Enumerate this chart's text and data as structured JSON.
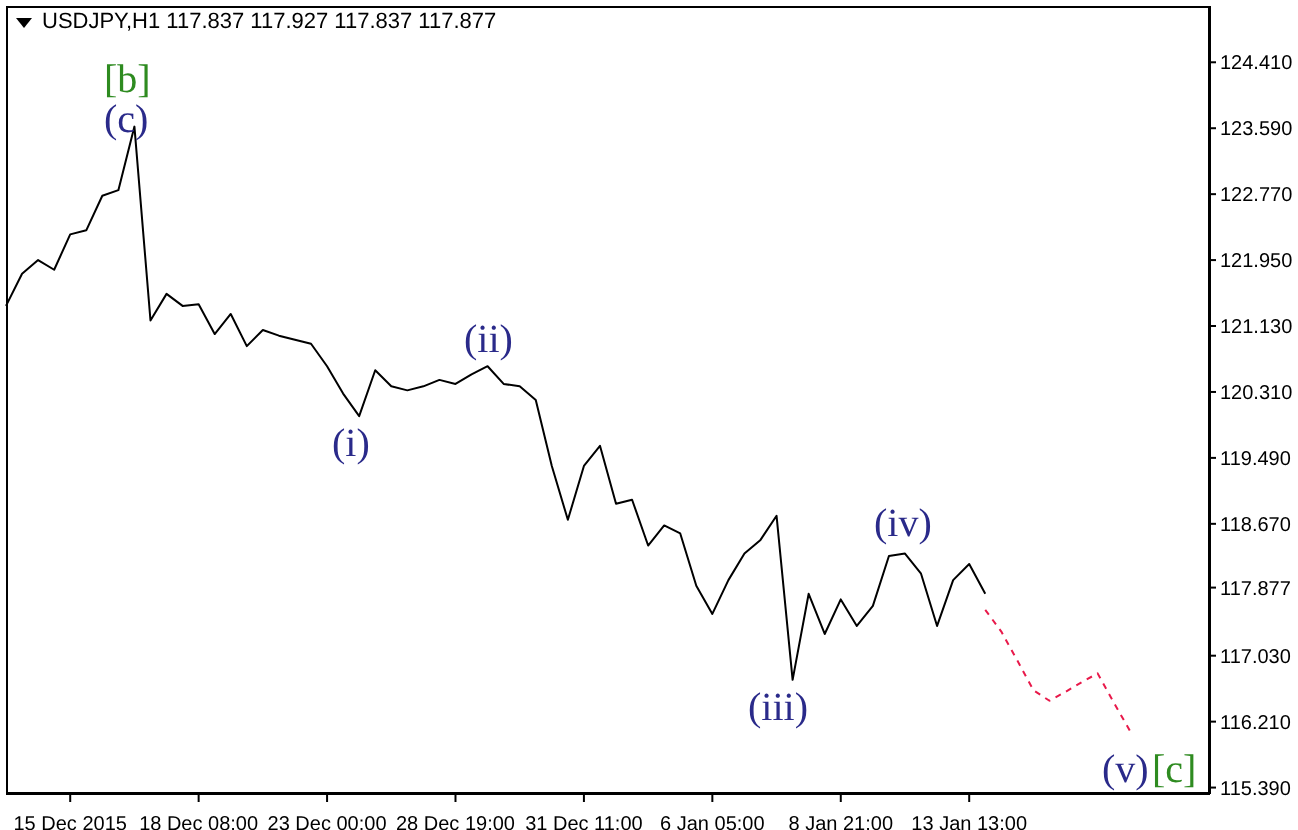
{
  "chart_data": {
    "type": "line",
    "title": "USDJPY,H1  117.837 117.927 117.837 117.877",
    "categories": [
      null,
      null,
      null,
      null,
      "15 Dec 2015",
      null,
      null,
      null,
      null,
      null,
      null,
      null,
      "18 Dec 08:00",
      null,
      null,
      null,
      null,
      null,
      null,
      null,
      "23 Dec 00:00",
      null,
      null,
      null,
      null,
      null,
      null,
      null,
      "28 Dec 19:00",
      null,
      null,
      null,
      null,
      null,
      null,
      null,
      "31 Dec 11:00",
      null,
      null,
      null,
      null,
      null,
      null,
      null,
      "6 Jan 05:00",
      null,
      null,
      null,
      null,
      null,
      null,
      null,
      "8 Jan 21:00",
      null,
      null,
      null,
      null,
      null,
      null,
      null,
      "13 Jan 13:00",
      null,
      null,
      null,
      null,
      null,
      null,
      null,
      null,
      null,
      null,
      null,
      null,
      null,
      null,
      null
    ],
    "ylim": [
      115.31,
      125.11
    ],
    "yticks": [
      {
        "value": 115.39,
        "label": "115.390"
      },
      {
        "value": 116.21,
        "label": "116.210"
      },
      {
        "value": 117.03,
        "label": "117.030"
      },
      117.877,
      {
        "value": 118.67,
        "label": "118.670"
      },
      {
        "value": 119.49,
        "label": "119.490"
      },
      {
        "value": 120.31,
        "label": "120.310"
      },
      {
        "value": 121.13,
        "label": "121.130"
      },
      {
        "value": 121.95,
        "label": "121.950"
      },
      {
        "value": 122.77,
        "label": "122.770"
      },
      {
        "value": 123.59,
        "label": "123.590"
      },
      {
        "value": 124.41,
        "label": "124.410"
      }
    ],
    "grid": false,
    "legend": false,
    "series": [
      {
        "color": "#000000",
        "line_style": "solid",
        "values": [
          121.38,
          121.78,
          121.95,
          121.83,
          122.27,
          122.32,
          122.75,
          122.82,
          123.61,
          121.2,
          121.53,
          121.38,
          121.4,
          121.03,
          121.28,
          120.88,
          121.08,
          121.01,
          120.96,
          120.91,
          120.63,
          120.29,
          120.01,
          120.58,
          120.38,
          120.33,
          120.38,
          120.46,
          120.41,
          120.53,
          120.63,
          120.41,
          120.38,
          120.21,
          119.39,
          118.72,
          119.39,
          119.64,
          118.92,
          118.97,
          118.4,
          118.65,
          118.55,
          117.9,
          117.55,
          117.97,
          118.3,
          118.47,
          118.77,
          116.73,
          117.8,
          117.3,
          117.73,
          117.4,
          117.65,
          118.27,
          118.3,
          118.05,
          117.4,
          117.97,
          118.17,
          117.8,
          null,
          null,
          null,
          null,
          null,
          null,
          null,
          null,
          null,
          null,
          null,
          null,
          null,
          null
        ]
      },
      {
        "color": "#e8194a",
        "line_style": "dashed",
        "values": [
          null,
          null,
          null,
          null,
          null,
          null,
          null,
          null,
          null,
          null,
          null,
          null,
          null,
          null,
          null,
          null,
          null,
          null,
          null,
          null,
          null,
          null,
          null,
          null,
          null,
          null,
          null,
          null,
          null,
          null,
          null,
          null,
          null,
          null,
          null,
          null,
          null,
          null,
          null,
          null,
          null,
          null,
          null,
          null,
          null,
          null,
          null,
          null,
          null,
          null,
          null,
          null,
          null,
          null,
          null,
          null,
          null,
          null,
          null,
          null,
          null,
          117.6,
          117.33,
          116.97,
          116.6,
          116.47,
          116.58,
          116.7,
          116.81,
          116.45,
          116.1,
          null,
          null,
          null,
          null,
          null
        ]
      }
    ],
    "annotations": [
      "[b]",
      "(c)",
      "(i)",
      "(ii)",
      "(iii)",
      "(iv)",
      "(v)",
      "[c]"
    ]
  }
}
